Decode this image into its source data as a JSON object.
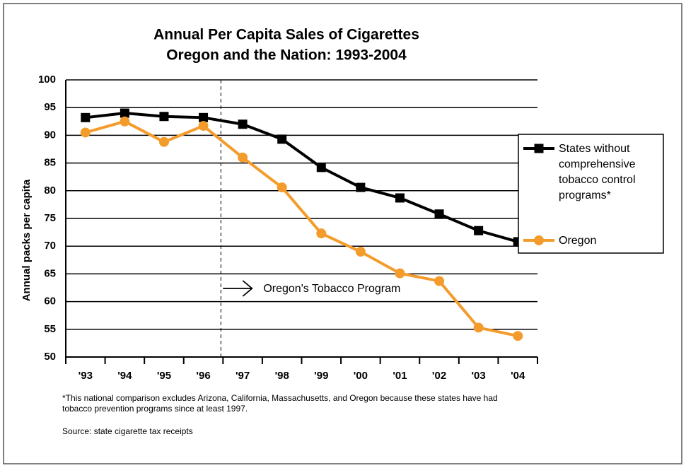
{
  "chart_data": {
    "type": "line",
    "title": "Annual Per Capita Sales of Cigarettes",
    "subtitle": "Oregon and the Nation: 1993-2004",
    "y_label": "Annual packs per capita",
    "categories": [
      "'93",
      "'94",
      "'95",
      "'96",
      "'97",
      "'98",
      "'99",
      "'00",
      "'01",
      "'02",
      "'03",
      "'04"
    ],
    "series": [
      {
        "name": "States without comprehensive tobacco control programs*",
        "color": "#000000",
        "marker": "square",
        "values": [
          93.2,
          94,
          93.4,
          93.2,
          92,
          89.3,
          84.2,
          80.6,
          78.7,
          75.8,
          72.8,
          70.8
        ]
      },
      {
        "name": "Oregon",
        "color": "#f39c2b",
        "marker": "circle",
        "values": [
          90.5,
          92.5,
          88.8,
          91.7,
          86,
          80.6,
          72.3,
          69,
          65.1,
          63.7,
          55.3,
          53.8
        ]
      }
    ],
    "ylim": [
      50,
      100
    ],
    "yticks": [
      50,
      55,
      60,
      65,
      70,
      75,
      80,
      85,
      90,
      95,
      100
    ],
    "grid": true,
    "annotation": "Oregon's Tobacco Program",
    "footnote": "*This national comparison excludes Arizona, California, Massachusetts, and Oregon because these states have had tobacco prevention programs since at least 1997.",
    "source": "Source: state cigarette tax receipts",
    "legend": "right"
  }
}
